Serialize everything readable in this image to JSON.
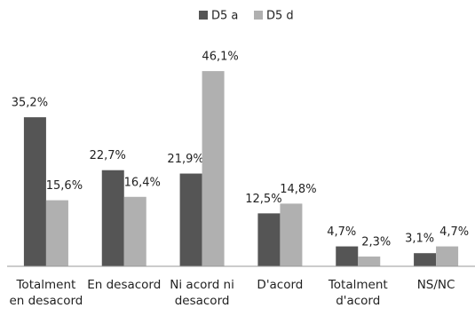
{
  "chart_data": {
    "type": "bar",
    "categories": [
      "Totalment en desacord",
      "En desacord",
      "Ni acord ni desacord",
      "D'acord",
      "Totalment d'acord",
      "NS/NC"
    ],
    "series": [
      {
        "name": "D5 a",
        "color": "#555555",
        "values": [
          35.2,
          22.7,
          21.9,
          12.5,
          4.7,
          3.1
        ],
        "value_labels": [
          "35,2%",
          "22,7%",
          "21,9%",
          "12,5%",
          "4,7%",
          "3,1%"
        ]
      },
      {
        "name": "D5 d",
        "color": "#b0b0b0",
        "values": [
          15.6,
          16.4,
          46.1,
          14.8,
          2.3,
          4.7
        ],
        "value_labels": [
          "15,6%",
          "16,4%",
          "46,1%",
          "14,8%",
          "2,3%",
          "4,7%"
        ]
      }
    ],
    "legend": "top"
  }
}
